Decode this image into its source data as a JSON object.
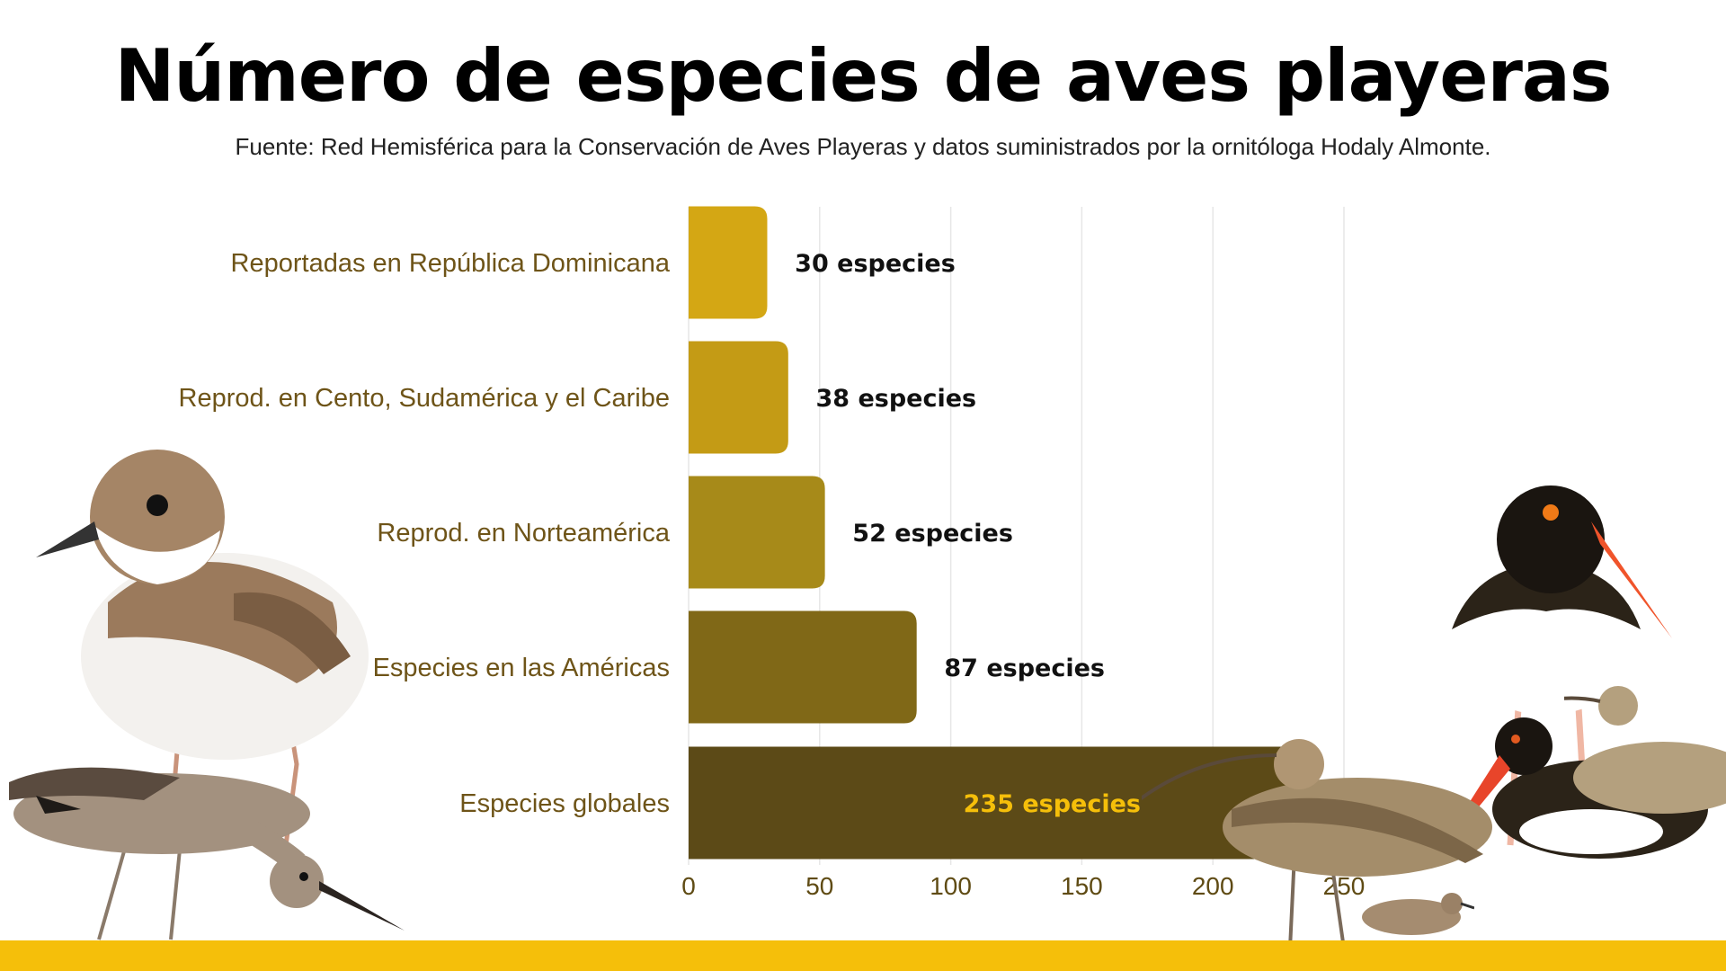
{
  "chart_data": {
    "type": "bar",
    "orientation": "horizontal",
    "title": "Número de especies de aves playeras",
    "subtitle": "Fuente: Red Hemisférica para la Conservación de Aves Playeras y datos suministrados por la ornitóloga Hodaly Almonte.",
    "categories": [
      "Reportadas en República Dominicana",
      "Reprod. en Cento, Sudamérica y el Caribe",
      "Reprod. en Norteamérica",
      "Especies en las Américas",
      "Especies globales"
    ],
    "values": [
      30,
      38,
      52,
      87,
      235
    ],
    "data_labels": [
      "30 especies",
      "38 especies",
      "52 especies",
      "87 especies",
      "235 especies"
    ],
    "bar_colors": [
      "#d4a714",
      "#c49b15",
      "#a78a19",
      "#806817",
      "#5c4a17"
    ],
    "xlim": [
      0,
      250
    ],
    "xticks": [
      0,
      50,
      100,
      150,
      200,
      250
    ],
    "grid": true
  },
  "colors": {
    "category_label": "#6e5418",
    "tick_label": "#5f4b14",
    "data_label": "#111111",
    "highlight_label": "#f5bf0a",
    "accent_bar": "#f5bf0a"
  },
  "decorations": [
    "plover-bird",
    "willet-bird",
    "curlew-bird",
    "sandpiper-bird",
    "oystercatcher-bird"
  ]
}
